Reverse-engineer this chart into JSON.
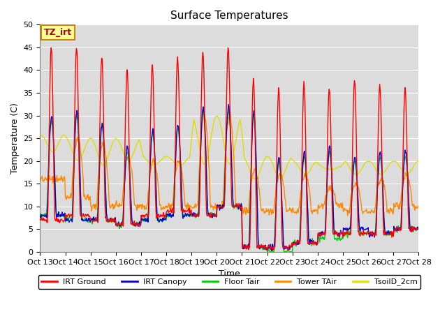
{
  "title": "Surface Temperatures",
  "xlabel": "Time",
  "ylabel": "Temperature (C)",
  "ylim": [
    0,
    50
  ],
  "xtick_labels": [
    "Oct 13",
    "Oct 14",
    "Oct 15",
    "Oct 16",
    "Oct 17",
    "Oct 18",
    "Oct 19",
    "Oct 20",
    "Oct 21",
    "Oct 22",
    "Oct 23",
    "Oct 24",
    "Oct 25",
    "Oct 26",
    "Oct 27",
    "Oct 28"
  ],
  "legend_entries": [
    "IRT Ground",
    "IRT Canopy",
    "Floor Tair",
    "Tower TAir",
    "TsoilD_2cm"
  ],
  "line_colors": [
    "#ff0000",
    "#0000dd",
    "#00cc00",
    "#ff8800",
    "#dddd00"
  ],
  "background_color": "#dcdcdc",
  "annotation_text": "TZ_irt",
  "annotation_bg": "#ffff99",
  "annotation_edge": "#cc8800",
  "title_fontsize": 11,
  "axis_label_fontsize": 9,
  "tick_fontsize": 8,
  "legend_fontsize": 8,
  "peak_irt": [
    45,
    45,
    43,
    40,
    41,
    43,
    44,
    45,
    38,
    36,
    37,
    36,
    38,
    37,
    36
  ],
  "base_irt": [
    7,
    8,
    7,
    6,
    8,
    9,
    8,
    10,
    1,
    1,
    2,
    4,
    4,
    4,
    5
  ],
  "peak_canopy": [
    30,
    31,
    28,
    23,
    27,
    28,
    32,
    32,
    31,
    21,
    22,
    23,
    21,
    22,
    22
  ],
  "base_canopy": [
    8,
    7,
    7,
    6,
    7,
    8,
    8,
    10,
    1,
    1,
    2,
    4,
    5,
    4,
    5
  ],
  "peak_floor": [
    29,
    30,
    28,
    22,
    26,
    27,
    31,
    31,
    30,
    20,
    21,
    22,
    20,
    21,
    21
  ],
  "base_floor": [
    8,
    7,
    7,
    6,
    7,
    8,
    8,
    10,
    1,
    0,
    2,
    3,
    4,
    4,
    5
  ],
  "peak_tower": [
    16,
    25,
    24,
    21,
    20,
    20,
    30,
    30,
    18,
    17,
    17,
    14,
    15,
    16,
    17
  ],
  "base_tower": [
    16,
    12,
    10,
    10,
    10,
    10,
    10,
    10,
    9,
    9,
    9,
    10,
    9,
    9,
    10
  ],
  "peak_tsoil": [
    26,
    25,
    25,
    25,
    21,
    21,
    30,
    30,
    21,
    21,
    20,
    19,
    20,
    20,
    20
  ],
  "base_tsoil": [
    22,
    20,
    19,
    20,
    19,
    19,
    19,
    19,
    16,
    16,
    17,
    18,
    17,
    17,
    17
  ]
}
